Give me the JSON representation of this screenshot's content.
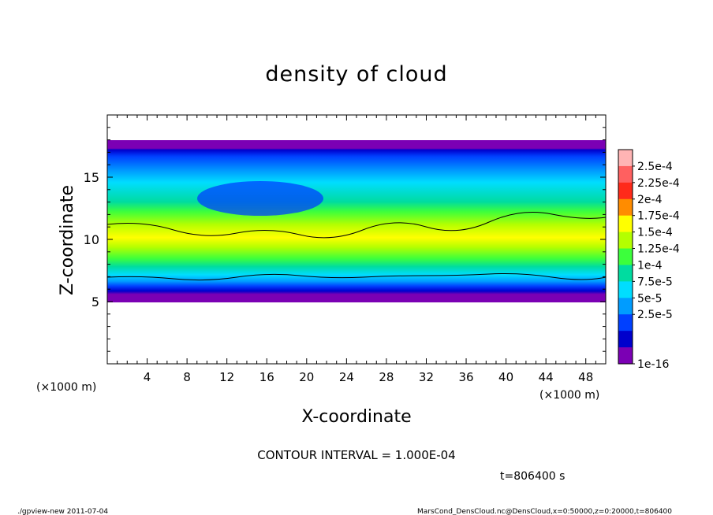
{
  "chart_data": {
    "type": "heatmap",
    "title": "density of cloud",
    "xlabel": "X-coordinate",
    "ylabel": "Z-coordinate",
    "x_unit": "(×1000 m)",
    "x_unit_top": "(×1000 m)",
    "xlim": [
      0,
      50
    ],
    "ylim": [
      0,
      20
    ],
    "x_ticks": [
      4,
      8,
      12,
      16,
      20,
      24,
      28,
      32,
      36,
      40,
      44,
      48
    ],
    "y_ticks": [
      5,
      10,
      15
    ],
    "colorbar": {
      "labels": [
        "2.5e-4",
        "2.25e-4",
        "2e-4",
        "1.75e-4",
        "1.5e-4",
        "1.25e-4",
        "1e-4",
        "7.5e-5",
        "5e-5",
        "2.5e-5",
        "1e-16"
      ],
      "colors": [
        "#ffb4b4",
        "#ff6060",
        "#ff2a1a",
        "#ff8c00",
        "#ffff00",
        "#b4ff00",
        "#3cff3c",
        "#00dca0",
        "#00ddff",
        "#009cff",
        "#0040ff",
        "#0000cc",
        "#7b00b4"
      ]
    },
    "contour_interval_text": "CONTOUR INTERVAL = 1.000E-04",
    "time_text": "t=806400 s",
    "footer_left": "./gpview-new   2011-07-04",
    "footer_right": "MarsCond_DensCloud.nc@DensCloud,x=0:50000,z=0:20000,t=806400"
  }
}
